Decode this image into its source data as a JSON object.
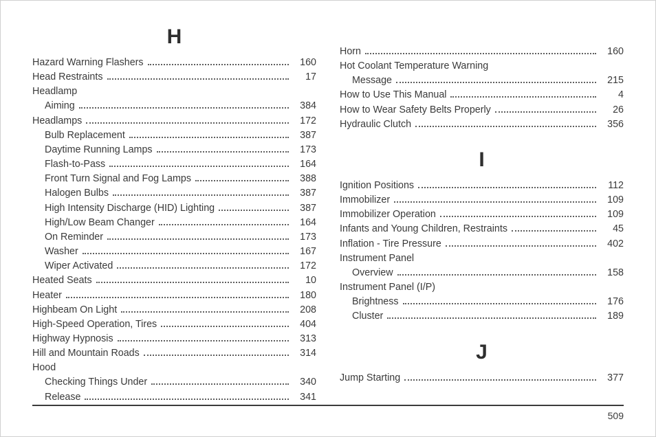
{
  "page_number": "509",
  "left_col": {
    "letter": "H",
    "entries": [
      {
        "type": "entry",
        "label": "Hazard Warning Flashers",
        "page": "160"
      },
      {
        "type": "entry",
        "label": "Head Restraints",
        "page": "17"
      },
      {
        "type": "header",
        "label": "Headlamp"
      },
      {
        "type": "sub",
        "label": "Aiming",
        "page": "384"
      },
      {
        "type": "entry",
        "label": "Headlamps",
        "page": "172"
      },
      {
        "type": "sub",
        "label": "Bulb Replacement",
        "page": "387"
      },
      {
        "type": "sub",
        "label": "Daytime Running Lamps",
        "page": "173"
      },
      {
        "type": "sub",
        "label": "Flash-to-Pass",
        "page": "164"
      },
      {
        "type": "sub",
        "label": "Front Turn Signal and Fog Lamps",
        "page": "388"
      },
      {
        "type": "sub",
        "label": "Halogen Bulbs",
        "page": "387"
      },
      {
        "type": "sub",
        "label": "High Intensity Discharge (HID) Lighting",
        "page": "387"
      },
      {
        "type": "sub",
        "label": "High/Low Beam Changer",
        "page": "164"
      },
      {
        "type": "sub",
        "label": "On Reminder",
        "page": "173"
      },
      {
        "type": "sub",
        "label": "Washer",
        "page": "167"
      },
      {
        "type": "sub",
        "label": "Wiper Activated",
        "page": "172"
      },
      {
        "type": "entry",
        "label": "Heated Seats",
        "page": "10"
      },
      {
        "type": "entry",
        "label": "Heater",
        "page": "180"
      },
      {
        "type": "entry",
        "label": "Highbeam On Light",
        "page": "208"
      },
      {
        "type": "entry",
        "label": "High-Speed Operation, Tires",
        "page": "404"
      },
      {
        "type": "entry",
        "label": "Highway Hypnosis",
        "page": "313"
      },
      {
        "type": "entry",
        "label": "Hill and Mountain Roads",
        "page": "314"
      },
      {
        "type": "header",
        "label": "Hood"
      },
      {
        "type": "sub",
        "label": "Checking Things Under",
        "page": "340"
      },
      {
        "type": "sub",
        "label": "Release",
        "page": "341"
      }
    ]
  },
  "right_col": {
    "blocks": [
      {
        "letter": null,
        "entries": [
          {
            "type": "entry",
            "label": "Horn",
            "page": "160"
          },
          {
            "type": "header",
            "label": "Hot Coolant Temperature Warning"
          },
          {
            "type": "sub",
            "label": "Message",
            "page": "215"
          },
          {
            "type": "entry",
            "label": "How to Use This Manual",
            "page": "4"
          },
          {
            "type": "entry",
            "label": "How to Wear Safety Belts Properly",
            "page": "26"
          },
          {
            "type": "entry",
            "label": "Hydraulic Clutch",
            "page": "356"
          }
        ]
      },
      {
        "letter": "I",
        "entries": [
          {
            "type": "entry",
            "label": "Ignition Positions",
            "page": "112"
          },
          {
            "type": "entry",
            "label": "Immobilizer",
            "page": "109"
          },
          {
            "type": "entry",
            "label": "Immobilizer Operation",
            "page": "109"
          },
          {
            "type": "entry",
            "label": "Infants and Young Children, Restraints",
            "page": "45"
          },
          {
            "type": "entry",
            "label": "Inflation - Tire Pressure",
            "page": "402"
          },
          {
            "type": "header",
            "label": "Instrument Panel"
          },
          {
            "type": "sub",
            "label": "Overview",
            "page": "158"
          },
          {
            "type": "header",
            "label": "Instrument Panel (I/P)"
          },
          {
            "type": "sub",
            "label": "Brightness",
            "page": "176"
          },
          {
            "type": "sub",
            "label": "Cluster",
            "page": "189"
          }
        ]
      },
      {
        "letter": "J",
        "entries": [
          {
            "type": "entry",
            "label": "Jump Starting",
            "page": "377"
          }
        ]
      }
    ]
  }
}
